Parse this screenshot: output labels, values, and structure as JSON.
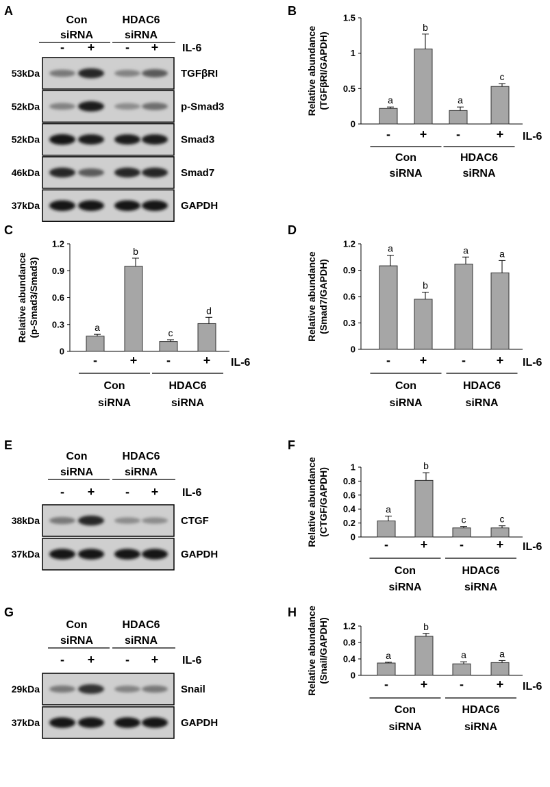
{
  "labels": {
    "il6": "IL-6",
    "minus": "-",
    "plus": "+",
    "con_line1": "Con",
    "con_line2": "siRNA",
    "hdac_line1": "HDAC6",
    "hdac_line2": "siRNA"
  },
  "blot_panels": [
    {
      "panel_label": "A",
      "rows": [
        {
          "kda": "53kDa",
          "protein": "TGFβRI",
          "intensities": [
            0.45,
            0.85,
            0.4,
            0.6
          ]
        },
        {
          "kda": "52kDa",
          "protein": "p-Smad3",
          "intensities": [
            0.4,
            0.9,
            0.35,
            0.5
          ]
        },
        {
          "kda": "52kDa",
          "protein": "Smad3",
          "intensities": [
            0.95,
            0.9,
            0.9,
            0.9
          ]
        },
        {
          "kda": "46kDa",
          "protein": "Smad7",
          "intensities": [
            0.85,
            0.6,
            0.85,
            0.85
          ]
        },
        {
          "kda": "37kDa",
          "protein": "GAPDH",
          "intensities": [
            0.95,
            0.95,
            0.95,
            0.95
          ]
        }
      ]
    },
    {
      "panel_label": "E",
      "rows": [
        {
          "kda": "38kDa",
          "protein": "CTGF",
          "intensities": [
            0.45,
            0.85,
            0.35,
            0.35
          ]
        },
        {
          "kda": "37kDa",
          "protein": "GAPDH",
          "intensities": [
            0.95,
            0.95,
            0.95,
            0.95
          ]
        }
      ]
    },
    {
      "panel_label": "G",
      "rows": [
        {
          "kda": "29kDa",
          "protein": "Snail",
          "intensities": [
            0.45,
            0.8,
            0.4,
            0.45
          ]
        },
        {
          "kda": "37kDa",
          "protein": "GAPDH",
          "intensities": [
            0.95,
            0.95,
            0.95,
            0.95
          ]
        }
      ]
    }
  ],
  "chart_data": [
    {
      "panel_label": "B",
      "type": "bar",
      "ylabel_line1": "Relative abundance",
      "ylabel_line2": "(TGFβRI/GAPDH)",
      "ylim": [
        0,
        1.5
      ],
      "yticks": [
        "0",
        "0.5",
        "1",
        "1.5"
      ],
      "ytick_values": [
        0,
        0.5,
        1,
        1.5
      ],
      "categories": [
        "Con siRNA -",
        "Con siRNA +",
        "HDAC6 siRNA -",
        "HDAC6 siRNA +"
      ],
      "values": [
        0.22,
        1.06,
        0.19,
        0.53
      ],
      "errors": [
        0.02,
        0.21,
        0.05,
        0.04
      ],
      "letters": [
        "a",
        "b",
        "a",
        "c"
      ],
      "bar_color": "#a6a6a6"
    },
    {
      "panel_label": "C",
      "type": "bar",
      "ylabel_line1": "Relative abundance",
      "ylabel_line2": "(p-Smad3/Smad3)",
      "ylim": [
        0,
        1.2
      ],
      "yticks": [
        "0",
        "0.3",
        "0.6",
        "0.9",
        "1.2"
      ],
      "ytick_values": [
        0,
        0.3,
        0.6,
        0.9,
        1.2
      ],
      "categories": [
        "Con siRNA -",
        "Con siRNA +",
        "HDAC6 siRNA -",
        "HDAC6 siRNA +"
      ],
      "values": [
        0.17,
        0.95,
        0.11,
        0.31
      ],
      "errors": [
        0.02,
        0.09,
        0.02,
        0.07
      ],
      "letters": [
        "a",
        "b",
        "c",
        "d"
      ],
      "bar_color": "#a6a6a6"
    },
    {
      "panel_label": "D",
      "type": "bar",
      "ylabel_line1": "Relative abundance",
      "ylabel_line2": "(Smad7/GAPDH)",
      "ylim": [
        0,
        1.2
      ],
      "yticks": [
        "0",
        "0.3",
        "0.6",
        "0.9",
        "1.2"
      ],
      "ytick_values": [
        0,
        0.3,
        0.6,
        0.9,
        1.2
      ],
      "categories": [
        "Con siRNA -",
        "Con siRNA +",
        "HDAC6 siRNA -",
        "HDAC6 siRNA +"
      ],
      "values": [
        0.95,
        0.57,
        0.97,
        0.87
      ],
      "errors": [
        0.12,
        0.08,
        0.08,
        0.14
      ],
      "letters": [
        "a",
        "b",
        "a",
        "a"
      ],
      "bar_color": "#a6a6a6"
    },
    {
      "panel_label": "F",
      "type": "bar",
      "ylabel_line1": "Relative abundance",
      "ylabel_line2": "(CTGF/GAPDH)",
      "ylim": [
        0,
        1
      ],
      "yticks": [
        "0",
        "0.2",
        "0.4",
        "0.6",
        "0.8",
        "1"
      ],
      "ytick_values": [
        0,
        0.2,
        0.4,
        0.6,
        0.8,
        1
      ],
      "categories": [
        "Con siRNA -",
        "Con siRNA +",
        "HDAC6 siRNA -",
        "HDAC6 siRNA +"
      ],
      "values": [
        0.23,
        0.81,
        0.13,
        0.13
      ],
      "errors": [
        0.07,
        0.11,
        0.02,
        0.03
      ],
      "letters": [
        "a",
        "b",
        "c",
        "c"
      ],
      "bar_color": "#a6a6a6"
    },
    {
      "panel_label": "H",
      "type": "bar",
      "ylabel_line1": "Relative abundance",
      "ylabel_line2": "(Snail/GAPDH)",
      "ylim": [
        0,
        1.2
      ],
      "yticks": [
        "0",
        "0.4",
        "0.8",
        "1.2"
      ],
      "ytick_values": [
        0,
        0.4,
        0.8,
        1.2
      ],
      "categories": [
        "Con siRNA -",
        "Con siRNA +",
        "HDAC6 siRNA -",
        "HDAC6 siRNA +"
      ],
      "values": [
        0.3,
        0.95,
        0.28,
        0.31
      ],
      "errors": [
        0.02,
        0.07,
        0.05,
        0.05
      ],
      "letters": [
        "a",
        "b",
        "a",
        "a"
      ],
      "bar_color": "#a6a6a6"
    }
  ]
}
